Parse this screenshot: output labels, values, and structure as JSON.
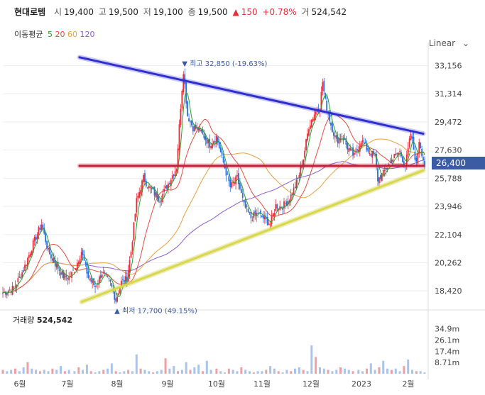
{
  "header": {
    "name": "현대로템",
    "open_label": "시",
    "open": "19,400",
    "high_label": "고",
    "high": "19,500",
    "low_label": "저",
    "low": "19,100",
    "close_label": "종",
    "close": "19,500",
    "change_arrow": "▲",
    "change": "150",
    "change_pct": "+0.78%",
    "volume_label": "거",
    "volume": "524,542"
  },
  "ma_legend": {
    "label": "이동평균",
    "items": [
      {
        "period": "5",
        "color": "#2ca02c"
      },
      {
        "period": "20",
        "color": "#e84c3d"
      },
      {
        "period": "60",
        "color": "#e8a03d"
      },
      {
        "period": "120",
        "color": "#8a5cd6"
      }
    ]
  },
  "scale_selector": {
    "label": "Linear",
    "icon": "chevron-down-icon"
  },
  "current_price_tag": "26,400",
  "volume_panel": {
    "title": "거래량",
    "value": "524,542"
  },
  "chart_data": {
    "type": "candlestick",
    "x_ticks": [
      "6월",
      "7월",
      "8월",
      "9월",
      "10월",
      "11월",
      "12월",
      "2023",
      "2월"
    ],
    "y_ticks": [
      "33,156",
      "31,314",
      "29,472",
      "27,630",
      "25,788",
      "23,946",
      "22,104",
      "20,262",
      "18,420"
    ],
    "volume_ticks": [
      "34.9m",
      "26.1m",
      "17.4m",
      "8.71m"
    ],
    "ylim": [
      17500,
      34200
    ],
    "annotations": {
      "high": {
        "text": "최고 32,850 (-19.63%)",
        "value": 32850
      },
      "low": {
        "text": "최저 17,700 (49.15%)",
        "value": 17700
      }
    },
    "price_path": [
      [
        0,
        18300
      ],
      [
        8,
        18600
      ],
      [
        15,
        19800
      ],
      [
        22,
        21500
      ],
      [
        28,
        22800
      ],
      [
        33,
        21000
      ],
      [
        38,
        20200
      ],
      [
        44,
        19400
      ],
      [
        48,
        19300
      ],
      [
        52,
        19800
      ],
      [
        57,
        21000
      ],
      [
        62,
        19300
      ],
      [
        67,
        18700
      ],
      [
        72,
        19600
      ],
      [
        78,
        18900
      ],
      [
        82,
        17800
      ],
      [
        86,
        19000
      ],
      [
        90,
        19200
      ],
      [
        93,
        21000
      ],
      [
        97,
        24300
      ],
      [
        102,
        25800
      ],
      [
        106,
        25200
      ],
      [
        110,
        24800
      ],
      [
        114,
        24400
      ],
      [
        118,
        25100
      ],
      [
        122,
        25800
      ],
      [
        126,
        26500
      ],
      [
        129,
        30500
      ],
      [
        131,
        32850
      ],
      [
        134,
        29900
      ],
      [
        138,
        29100
      ],
      [
        142,
        29000
      ],
      [
        146,
        28500
      ],
      [
        150,
        28000
      ],
      [
        155,
        28500
      ],
      [
        160,
        26800
      ],
      [
        165,
        25200
      ],
      [
        170,
        25800
      ],
      [
        175,
        24000
      ],
      [
        180,
        23200
      ],
      [
        185,
        23500
      ],
      [
        190,
        23100
      ],
      [
        194,
        22800
      ],
      [
        198,
        24000
      ],
      [
        202,
        23900
      ],
      [
        206,
        24200
      ],
      [
        210,
        24800
      ],
      [
        214,
        25700
      ],
      [
        218,
        27100
      ],
      [
        222,
        29200
      ],
      [
        226,
        30000
      ],
      [
        230,
        30500
      ],
      [
        232,
        32100
      ],
      [
        234,
        30800
      ],
      [
        238,
        29300
      ],
      [
        242,
        28200
      ],
      [
        246,
        28600
      ],
      [
        250,
        27800
      ],
      [
        255,
        27200
      ],
      [
        260,
        28300
      ],
      [
        265,
        27600
      ],
      [
        270,
        27200
      ],
      [
        272,
        25700
      ],
      [
        276,
        26100
      ],
      [
        280,
        26700
      ],
      [
        284,
        27200
      ],
      [
        288,
        27500
      ],
      [
        292,
        26600
      ],
      [
        296,
        28700
      ],
      [
        300,
        26700
      ],
      [
        302,
        28300
      ],
      [
        306,
        26600
      ]
    ],
    "ma_lines": {
      "ma5": {
        "color": "#2ca02c"
      },
      "ma20": {
        "color": "#e84c3d"
      },
      "ma60": {
        "color": "#e8a03d"
      },
      "ma120": {
        "color": "#8a5cd6"
      }
    },
    "trendlines": [
      {
        "name": "resistance",
        "color": "#2f2fd0",
        "from": [
          0,
          33700
        ],
        "to": [
          306,
          28700
        ]
      },
      {
        "name": "support",
        "color": "#d8d84a",
        "from": [
          60,
          17700
        ],
        "to": [
          306,
          26300
        ]
      },
      {
        "name": "horizontal",
        "color": "#c0203a",
        "from": [
          60,
          26600
        ],
        "to": [
          306,
          26600
        ]
      }
    ],
    "volume_values_m": [
      3,
      2,
      3,
      4,
      2,
      5,
      9,
      4,
      3,
      2,
      3,
      2,
      4,
      3,
      6,
      2,
      3,
      2,
      5,
      3,
      7,
      2,
      1,
      2,
      3,
      4,
      8,
      2,
      1,
      2,
      3,
      2,
      15,
      4,
      3,
      2,
      1,
      2,
      3,
      12,
      4,
      6,
      2,
      3,
      9,
      3,
      5,
      7,
      2,
      10,
      3,
      4,
      2,
      1,
      4,
      3,
      2,
      5,
      3,
      2,
      1,
      2,
      2,
      3,
      6,
      4,
      2,
      1,
      3,
      2,
      4,
      5,
      3,
      2,
      22,
      13,
      5,
      4,
      3,
      2,
      3,
      5,
      4,
      3,
      2,
      3,
      2,
      4,
      8,
      3,
      5,
      10,
      4,
      3,
      4,
      2,
      6,
      11,
      3,
      2,
      2,
      1
    ]
  }
}
